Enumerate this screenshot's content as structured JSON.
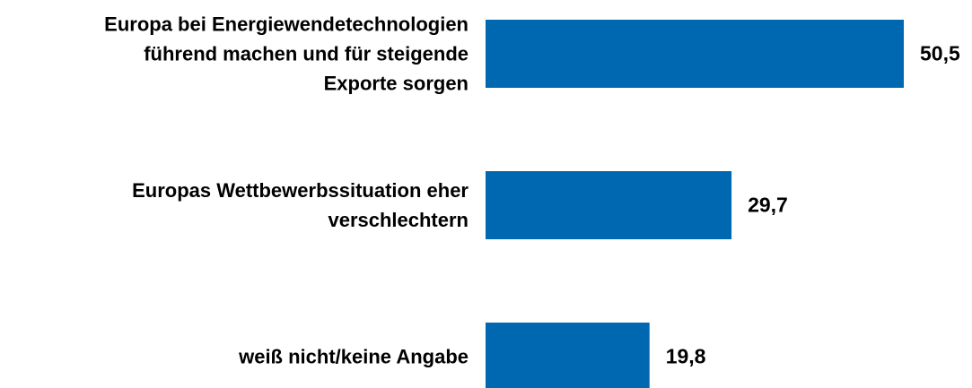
{
  "chart_data": {
    "type": "barh",
    "categories": [
      "Europa bei Energiewendetechnologien\nführend machen und für steigende\nExporte sorgen",
      "Europas Wettbewerbssituation eher\nverschlechtern",
      "weiß nicht/keine Angabe"
    ],
    "values": [
      50.5,
      29.7,
      19.8
    ],
    "value_labels": [
      "50,5",
      "29,7",
      "19,8"
    ],
    "color": "#0067b1"
  }
}
